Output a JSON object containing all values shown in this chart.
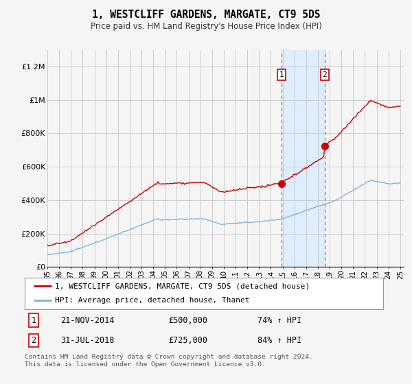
{
  "title": "1, WESTCLIFF GARDENS, MARGATE, CT9 5DS",
  "subtitle": "Price paid vs. HM Land Registry's House Price Index (HPI)",
  "red_label": "1, WESTCLIFF GARDENS, MARGATE, CT9 5DS (detached house)",
  "blue_label": "HPI: Average price, detached house, Thanet",
  "annotation1_date": "21-NOV-2014",
  "annotation1_price": "£500,000",
  "annotation1_hpi": "74% ↑ HPI",
  "annotation2_date": "31-JUL-2018",
  "annotation2_price": "£725,000",
  "annotation2_hpi": "84% ↑ HPI",
  "footer": "Contains HM Land Registry data © Crown copyright and database right 2024.\nThis data is licensed under the Open Government Licence v3.0.",
  "ylim_min": 0,
  "ylim_max": 1300000,
  "red_color": "#cc0000",
  "blue_color": "#7bafd4",
  "shaded_color": "#ddeeff",
  "vline_color": "#e06060",
  "background_color": "#f5f5f5",
  "grid_color": "#cccccc",
  "year_start": 1995,
  "year_end": 2025,
  "sale1_year": 2014.9,
  "sale2_year": 2018.58,
  "sale1_price": 500000,
  "sale2_price": 725000
}
